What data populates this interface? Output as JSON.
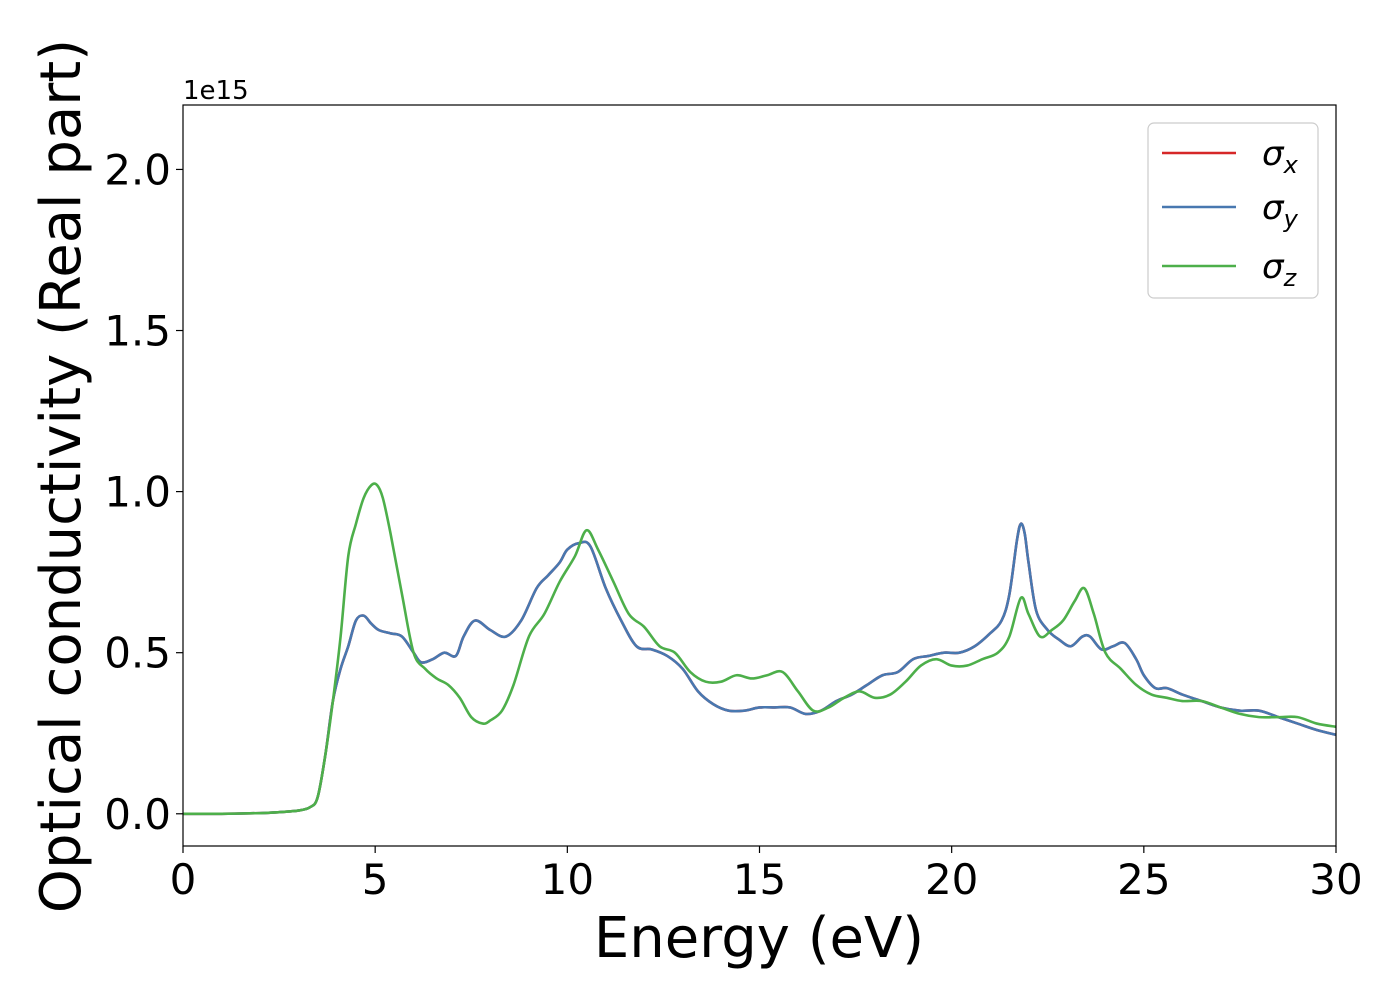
{
  "chart_data": {
    "type": "line",
    "title": "",
    "xlabel": "Energy (eV)",
    "ylabel": "Optical conductivity (Real part)",
    "y_offset_label": "1e15",
    "xlim": [
      0,
      30
    ],
    "ylim": [
      -0.1,
      2.2
    ],
    "xticks": [
      0,
      5,
      10,
      15,
      20,
      25,
      30
    ],
    "yticks": [
      0.0,
      0.5,
      1.0,
      1.5,
      2.0
    ],
    "xtick_labels": [
      "0",
      "5",
      "10",
      "15",
      "20",
      "25",
      "30"
    ],
    "ytick_labels": [
      "0.0",
      "0.5",
      "1.0",
      "1.5",
      "2.0"
    ],
    "grid": false,
    "legend_position": "top-right",
    "series": [
      {
        "name": "σx",
        "legend_base": "σ",
        "legend_sub": "x",
        "color": "#d62728",
        "x": [
          0,
          1,
          2,
          2.5,
          3,
          3.3,
          3.5,
          3.7,
          3.9,
          4.1,
          4.3,
          4.5,
          4.7,
          4.9,
          5.1,
          5.4,
          5.7,
          6.0,
          6.2,
          6.5,
          6.8,
          7.1,
          7.3,
          7.6,
          8.0,
          8.4,
          8.8,
          9.2,
          9.5,
          9.8,
          10.0,
          10.3,
          10.6,
          11.0,
          11.4,
          11.8,
          12.2,
          12.6,
          13.0,
          13.4,
          13.8,
          14.2,
          14.6,
          15.0,
          15.4,
          15.8,
          16.2,
          16.6,
          17.0,
          17.4,
          17.8,
          18.2,
          18.6,
          19.0,
          19.4,
          19.8,
          20.2,
          20.6,
          21.0,
          21.3,
          21.5,
          21.7,
          21.8,
          21.9,
          22.0,
          22.2,
          22.5,
          22.8,
          23.1,
          23.4,
          23.6,
          23.9,
          24.2,
          24.5,
          24.8,
          25.0,
          25.3,
          25.6,
          26.0,
          26.5,
          27.0,
          27.5,
          28.0,
          28.5,
          29.0,
          29.5,
          30.0
        ],
        "y": [
          0.0,
          0.0,
          0.002,
          0.005,
          0.01,
          0.02,
          0.05,
          0.18,
          0.35,
          0.45,
          0.52,
          0.6,
          0.615,
          0.59,
          0.57,
          0.56,
          0.55,
          0.5,
          0.47,
          0.48,
          0.5,
          0.49,
          0.55,
          0.6,
          0.57,
          0.55,
          0.6,
          0.7,
          0.74,
          0.78,
          0.82,
          0.84,
          0.83,
          0.7,
          0.6,
          0.52,
          0.51,
          0.49,
          0.45,
          0.38,
          0.34,
          0.32,
          0.32,
          0.33,
          0.33,
          0.33,
          0.31,
          0.32,
          0.35,
          0.37,
          0.4,
          0.43,
          0.44,
          0.48,
          0.49,
          0.5,
          0.5,
          0.52,
          0.56,
          0.6,
          0.68,
          0.85,
          0.9,
          0.87,
          0.78,
          0.63,
          0.57,
          0.54,
          0.52,
          0.55,
          0.55,
          0.51,
          0.52,
          0.53,
          0.48,
          0.43,
          0.39,
          0.39,
          0.37,
          0.35,
          0.33,
          0.32,
          0.32,
          0.3,
          0.28,
          0.26,
          0.245
        ]
      },
      {
        "name": "σy",
        "legend_base": "σ",
        "legend_sub": "y",
        "color": "#4878b0",
        "x": [
          0,
          1,
          2,
          2.5,
          3,
          3.3,
          3.5,
          3.7,
          3.9,
          4.1,
          4.3,
          4.5,
          4.7,
          4.9,
          5.1,
          5.4,
          5.7,
          6.0,
          6.2,
          6.5,
          6.8,
          7.1,
          7.3,
          7.6,
          8.0,
          8.4,
          8.8,
          9.2,
          9.5,
          9.8,
          10.0,
          10.3,
          10.6,
          11.0,
          11.4,
          11.8,
          12.2,
          12.6,
          13.0,
          13.4,
          13.8,
          14.2,
          14.6,
          15.0,
          15.4,
          15.8,
          16.2,
          16.6,
          17.0,
          17.4,
          17.8,
          18.2,
          18.6,
          19.0,
          19.4,
          19.8,
          20.2,
          20.6,
          21.0,
          21.3,
          21.5,
          21.7,
          21.8,
          21.9,
          22.0,
          22.2,
          22.5,
          22.8,
          23.1,
          23.4,
          23.6,
          23.9,
          24.2,
          24.5,
          24.8,
          25.0,
          25.3,
          25.6,
          26.0,
          26.5,
          27.0,
          27.5,
          28.0,
          28.5,
          29.0,
          29.5,
          30.0
        ],
        "y": [
          0.0,
          0.0,
          0.002,
          0.005,
          0.01,
          0.02,
          0.05,
          0.18,
          0.35,
          0.45,
          0.52,
          0.6,
          0.615,
          0.59,
          0.57,
          0.56,
          0.55,
          0.5,
          0.47,
          0.48,
          0.5,
          0.49,
          0.55,
          0.6,
          0.57,
          0.55,
          0.6,
          0.7,
          0.74,
          0.78,
          0.82,
          0.84,
          0.83,
          0.7,
          0.6,
          0.52,
          0.51,
          0.49,
          0.45,
          0.38,
          0.34,
          0.32,
          0.32,
          0.33,
          0.33,
          0.33,
          0.31,
          0.32,
          0.35,
          0.37,
          0.4,
          0.43,
          0.44,
          0.48,
          0.49,
          0.5,
          0.5,
          0.52,
          0.56,
          0.6,
          0.68,
          0.85,
          0.9,
          0.87,
          0.78,
          0.63,
          0.57,
          0.54,
          0.52,
          0.55,
          0.55,
          0.51,
          0.52,
          0.53,
          0.48,
          0.43,
          0.39,
          0.39,
          0.37,
          0.35,
          0.33,
          0.32,
          0.32,
          0.3,
          0.28,
          0.26,
          0.245
        ]
      },
      {
        "name": "σz",
        "legend_base": "σ",
        "legend_sub": "z",
        "color": "#4daf4a",
        "x": [
          0,
          1,
          2,
          2.5,
          3,
          3.3,
          3.5,
          3.7,
          3.9,
          4.1,
          4.3,
          4.5,
          4.7,
          4.9,
          5.05,
          5.2,
          5.4,
          5.7,
          6.0,
          6.3,
          6.6,
          6.9,
          7.2,
          7.5,
          7.8,
          8.0,
          8.3,
          8.6,
          9.0,
          9.4,
          9.8,
          10.2,
          10.5,
          10.8,
          11.2,
          11.6,
          12.0,
          12.4,
          12.8,
          13.2,
          13.6,
          14.0,
          14.4,
          14.8,
          15.2,
          15.6,
          16.0,
          16.4,
          16.8,
          17.2,
          17.6,
          18.0,
          18.4,
          18.8,
          19.2,
          19.6,
          20.0,
          20.4,
          20.8,
          21.2,
          21.5,
          21.8,
          22.0,
          22.3,
          22.6,
          22.9,
          23.2,
          23.45,
          23.7,
          24.0,
          24.4,
          24.8,
          25.2,
          25.6,
          26.0,
          26.5,
          27.0,
          27.5,
          28.0,
          28.5,
          29.0,
          29.5,
          30.0
        ],
        "y": [
          0.0,
          0.0,
          0.002,
          0.005,
          0.01,
          0.02,
          0.05,
          0.18,
          0.35,
          0.55,
          0.8,
          0.9,
          0.98,
          1.02,
          1.02,
          0.98,
          0.87,
          0.68,
          0.5,
          0.45,
          0.42,
          0.4,
          0.36,
          0.3,
          0.28,
          0.29,
          0.32,
          0.4,
          0.55,
          0.62,
          0.72,
          0.8,
          0.88,
          0.82,
          0.72,
          0.62,
          0.58,
          0.52,
          0.5,
          0.44,
          0.41,
          0.41,
          0.43,
          0.42,
          0.43,
          0.44,
          0.38,
          0.32,
          0.33,
          0.36,
          0.38,
          0.36,
          0.37,
          0.41,
          0.46,
          0.48,
          0.46,
          0.46,
          0.48,
          0.5,
          0.55,
          0.67,
          0.62,
          0.55,
          0.57,
          0.6,
          0.66,
          0.7,
          0.62,
          0.5,
          0.45,
          0.4,
          0.37,
          0.36,
          0.35,
          0.35,
          0.33,
          0.31,
          0.3,
          0.3,
          0.3,
          0.28,
          0.27
        ]
      }
    ]
  }
}
